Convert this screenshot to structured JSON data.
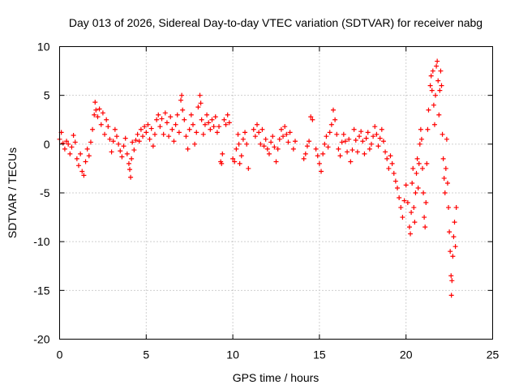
{
  "chart_data": {
    "type": "scatter",
    "title": "Day 013 of 2026, Sidereal Day-to-day VTEC variation (SDTVAR) for receiver nabg",
    "xlabel": "GPS time / hours",
    "ylabel": "SDTVAR / TECUs",
    "xlim": [
      0,
      25
    ],
    "ylim": [
      -20,
      10
    ],
    "x_ticks": [
      0,
      5,
      10,
      15,
      20,
      25
    ],
    "y_ticks": [
      -20,
      -15,
      -10,
      -5,
      0,
      5,
      10
    ],
    "x_tick_labels": [
      "0",
      "5",
      "10",
      "15",
      "20",
      "25"
    ],
    "y_tick_labels": [
      "-20",
      "-15",
      "-10",
      "-5",
      "0",
      "5",
      "10"
    ],
    "grid": true,
    "marker": "plus",
    "series": [
      {
        "name": "SDTVAR",
        "color": "#ff0000",
        "points": [
          [
            0.0,
            0.5
          ],
          [
            0.1,
            1.2
          ],
          [
            0.2,
            0.1
          ],
          [
            0.3,
            -0.5
          ],
          [
            0.4,
            0.3
          ],
          [
            0.5,
            0.0
          ],
          [
            0.6,
            -1.0
          ],
          [
            0.7,
            -0.3
          ],
          [
            0.8,
            0.9
          ],
          [
            0.9,
            0.2
          ],
          [
            1.0,
            -1.5
          ],
          [
            1.1,
            -2.2
          ],
          [
            1.2,
            -1.0
          ],
          [
            1.3,
            -2.8
          ],
          [
            1.4,
            -3.2
          ],
          [
            1.5,
            -1.8
          ],
          [
            1.6,
            -0.5
          ],
          [
            1.7,
            -1.2
          ],
          [
            1.8,
            0.2
          ],
          [
            1.9,
            1.5
          ],
          [
            2.0,
            3.0
          ],
          [
            2.05,
            4.3
          ],
          [
            2.1,
            3.5
          ],
          [
            2.2,
            2.8
          ],
          [
            2.3,
            3.6
          ],
          [
            2.4,
            2.0
          ],
          [
            2.5,
            3.2
          ],
          [
            2.6,
            1.0
          ],
          [
            2.7,
            2.5
          ],
          [
            2.8,
            1.8
          ],
          [
            2.9,
            0.5
          ],
          [
            3.0,
            -0.8
          ],
          [
            3.1,
            0.3
          ],
          [
            3.2,
            1.5
          ],
          [
            3.3,
            0.8
          ],
          [
            3.4,
            0.0
          ],
          [
            3.5,
            -0.7
          ],
          [
            3.6,
            -1.3
          ],
          [
            3.7,
            -0.2
          ],
          [
            3.8,
            0.6
          ],
          [
            3.9,
            -1.0
          ],
          [
            4.0,
            -2.0
          ],
          [
            4.05,
            -2.6
          ],
          [
            4.1,
            -3.4
          ],
          [
            4.15,
            -1.5
          ],
          [
            4.2,
            0.2
          ],
          [
            4.3,
            -0.6
          ],
          [
            4.4,
            0.4
          ],
          [
            4.5,
            1.0
          ],
          [
            4.6,
            0.3
          ],
          [
            4.7,
            1.5
          ],
          [
            4.8,
            0.8
          ],
          [
            4.9,
            1.8
          ],
          [
            5.0,
            1.2
          ],
          [
            5.1,
            2.0
          ],
          [
            5.2,
            0.5
          ],
          [
            5.3,
            1.6
          ],
          [
            5.4,
            -0.2
          ],
          [
            5.5,
            1.0
          ],
          [
            5.6,
            2.5
          ],
          [
            5.7,
            3.0
          ],
          [
            5.8,
            1.8
          ],
          [
            5.9,
            2.6
          ],
          [
            6.0,
            1.0
          ],
          [
            6.1,
            3.2
          ],
          [
            6.2,
            2.2
          ],
          [
            6.3,
            0.8
          ],
          [
            6.4,
            2.8
          ],
          [
            6.5,
            1.5
          ],
          [
            6.6,
            0.3
          ],
          [
            6.7,
            2.0
          ],
          [
            6.8,
            3.0
          ],
          [
            6.9,
            1.2
          ],
          [
            7.0,
            4.5
          ],
          [
            7.05,
            5.0
          ],
          [
            7.1,
            3.5
          ],
          [
            7.2,
            2.5
          ],
          [
            7.3,
            0.8
          ],
          [
            7.4,
            -0.5
          ],
          [
            7.5,
            1.5
          ],
          [
            7.6,
            3.0
          ],
          [
            7.7,
            2.0
          ],
          [
            7.8,
            0.0
          ],
          [
            7.9,
            1.2
          ],
          [
            8.0,
            3.8
          ],
          [
            8.1,
            5.0
          ],
          [
            8.15,
            4.2
          ],
          [
            8.2,
            2.5
          ],
          [
            8.3,
            1.0
          ],
          [
            8.4,
            2.0
          ],
          [
            8.5,
            3.0
          ],
          [
            8.6,
            2.2
          ],
          [
            8.7,
            1.5
          ],
          [
            8.8,
            2.5
          ],
          [
            8.9,
            1.8
          ],
          [
            9.0,
            2.8
          ],
          [
            9.1,
            1.2
          ],
          [
            9.2,
            1.8
          ],
          [
            9.3,
            -1.8
          ],
          [
            9.35,
            -2.0
          ],
          [
            9.4,
            -1.0
          ],
          [
            9.5,
            2.5
          ],
          [
            9.6,
            2.0
          ],
          [
            9.7,
            3.0
          ],
          [
            9.8,
            2.2
          ],
          [
            10.0,
            -1.5
          ],
          [
            10.1,
            -1.8
          ],
          [
            10.2,
            -0.5
          ],
          [
            10.3,
            1.0
          ],
          [
            10.35,
            0.0
          ],
          [
            10.4,
            -2.0
          ],
          [
            10.5,
            -1.2
          ],
          [
            10.6,
            0.5
          ],
          [
            10.7,
            1.2
          ],
          [
            10.8,
            0.0
          ],
          [
            10.9,
            -2.5
          ],
          [
            11.2,
            1.5
          ],
          [
            11.3,
            0.8
          ],
          [
            11.4,
            2.0
          ],
          [
            11.5,
            1.2
          ],
          [
            11.6,
            0.0
          ],
          [
            11.7,
            1.5
          ],
          [
            11.8,
            -0.2
          ],
          [
            11.9,
            0.5
          ],
          [
            12.0,
            -0.5
          ],
          [
            12.1,
            -1.0
          ],
          [
            12.2,
            0.2
          ],
          [
            12.3,
            0.8
          ],
          [
            12.4,
            -0.3
          ],
          [
            12.5,
            -1.8
          ],
          [
            12.6,
            -0.5
          ],
          [
            12.7,
            0.5
          ],
          [
            12.8,
            1.5
          ],
          [
            12.9,
            0.8
          ],
          [
            13.0,
            1.8
          ],
          [
            13.1,
            1.0
          ],
          [
            13.2,
            0.2
          ],
          [
            13.3,
            1.2
          ],
          [
            13.5,
            -0.5
          ],
          [
            13.6,
            0.3
          ],
          [
            14.1,
            -1.5
          ],
          [
            14.2,
            -1.0
          ],
          [
            14.3,
            -0.2
          ],
          [
            14.4,
            0.3
          ],
          [
            14.5,
            2.8
          ],
          [
            14.6,
            2.5
          ],
          [
            14.8,
            -0.5
          ],
          [
            14.9,
            -1.2
          ],
          [
            15.0,
            -2.0
          ],
          [
            15.1,
            -2.8
          ],
          [
            15.2,
            -1.0
          ],
          [
            15.3,
            0.0
          ],
          [
            15.4,
            0.8
          ],
          [
            15.5,
            -0.3
          ],
          [
            15.6,
            1.2
          ],
          [
            15.7,
            2.0
          ],
          [
            15.8,
            3.5
          ],
          [
            15.9,
            2.5
          ],
          [
            16.0,
            1.0
          ],
          [
            16.1,
            -0.5
          ],
          [
            16.2,
            -1.2
          ],
          [
            16.3,
            0.2
          ],
          [
            16.4,
            1.0
          ],
          [
            16.5,
            0.3
          ],
          [
            16.6,
            -0.8
          ],
          [
            16.7,
            0.5
          ],
          [
            16.8,
            -1.8
          ],
          [
            16.9,
            -0.6
          ],
          [
            17.0,
            1.5
          ],
          [
            17.1,
            0.4
          ],
          [
            17.2,
            -0.8
          ],
          [
            17.3,
            0.8
          ],
          [
            17.4,
            1.3
          ],
          [
            17.5,
            0.3
          ],
          [
            17.6,
            -1.0
          ],
          [
            17.7,
            0.6
          ],
          [
            17.8,
            1.2
          ],
          [
            17.9,
            -0.5
          ],
          [
            18.0,
            0.0
          ],
          [
            18.1,
            0.8
          ],
          [
            18.2,
            1.8
          ],
          [
            18.3,
            1.0
          ],
          [
            18.4,
            -0.2
          ],
          [
            18.5,
            0.6
          ],
          [
            18.6,
            1.5
          ],
          [
            18.7,
            0.3
          ],
          [
            18.8,
            -0.8
          ],
          [
            18.9,
            -1.5
          ],
          [
            19.0,
            -2.5
          ],
          [
            19.1,
            -1.2
          ],
          [
            19.2,
            -2.0
          ],
          [
            19.3,
            -3.0
          ],
          [
            19.4,
            -3.8
          ],
          [
            19.5,
            -4.5
          ],
          [
            19.6,
            -5.5
          ],
          [
            19.7,
            -6.5
          ],
          [
            19.8,
            -7.5
          ],
          [
            19.9,
            -5.8
          ],
          [
            20.0,
            -4.2
          ],
          [
            20.1,
            -6.0
          ],
          [
            20.2,
            -8.5
          ],
          [
            20.25,
            -9.2
          ],
          [
            20.3,
            -7.0
          ],
          [
            20.35,
            -4.0
          ],
          [
            20.4,
            -2.5
          ],
          [
            20.45,
            -6.5
          ],
          [
            20.5,
            -8.0
          ],
          [
            20.55,
            -5.0
          ],
          [
            20.6,
            -3.0
          ],
          [
            20.65,
            -1.5
          ],
          [
            20.7,
            -4.5
          ],
          [
            20.75,
            -2.0
          ],
          [
            20.8,
            0.0
          ],
          [
            20.85,
            1.5
          ],
          [
            20.9,
            0.5
          ],
          [
            20.95,
            -2.5
          ],
          [
            21.0,
            -5.0
          ],
          [
            21.05,
            -7.5
          ],
          [
            21.1,
            -8.5
          ],
          [
            21.15,
            -6.0
          ],
          [
            21.2,
            -2.0
          ],
          [
            21.25,
            1.5
          ],
          [
            21.3,
            3.5
          ],
          [
            21.4,
            6.0
          ],
          [
            21.45,
            7.0
          ],
          [
            21.5,
            5.5
          ],
          [
            21.55,
            7.5
          ],
          [
            21.6,
            4.0
          ],
          [
            21.65,
            2.0
          ],
          [
            21.7,
            5.0
          ],
          [
            21.75,
            8.0
          ],
          [
            21.8,
            8.5
          ],
          [
            21.85,
            6.5
          ],
          [
            21.9,
            3.0
          ],
          [
            21.95,
            5.5
          ],
          [
            22.0,
            7.5
          ],
          [
            22.05,
            6.0
          ],
          [
            22.1,
            1.0
          ],
          [
            22.15,
            -1.5
          ],
          [
            22.2,
            -3.5
          ],
          [
            22.25,
            -5.0
          ],
          [
            22.3,
            -2.5
          ],
          [
            22.35,
            0.5
          ],
          [
            22.4,
            -4.0
          ],
          [
            22.45,
            -6.5
          ],
          [
            22.5,
            -9.0
          ],
          [
            22.55,
            -11.0
          ],
          [
            22.6,
            -13.5
          ],
          [
            22.62,
            -15.5
          ],
          [
            22.65,
            -14.0
          ],
          [
            22.7,
            -11.5
          ],
          [
            22.75,
            -9.5
          ],
          [
            22.8,
            -8.0
          ],
          [
            22.85,
            -10.5
          ],
          [
            22.9,
            -6.5
          ]
        ]
      }
    ]
  }
}
